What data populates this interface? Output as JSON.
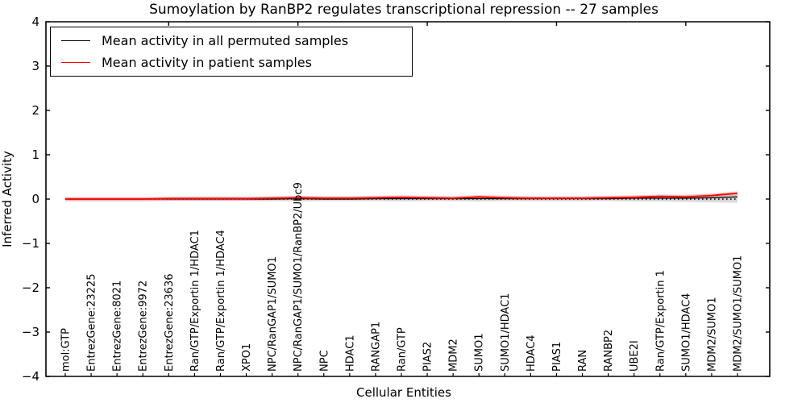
{
  "chart_data": {
    "type": "line",
    "title": "Sumoylation by RanBP2 regulates transcriptional repression -- 27 samples",
    "xlabel": "Cellular Entities",
    "ylabel": "Inferred Activity",
    "ylim": [
      -4,
      4
    ],
    "ytick_values": [
      4,
      3,
      2,
      1,
      0,
      -1,
      -2,
      -3,
      -4
    ],
    "ytick_labels": [
      "4",
      "3",
      "2",
      "1",
      "0",
      "−1",
      "−2",
      "−3",
      "−4"
    ],
    "top_xticks_at_positions": [
      5,
      10,
      15,
      20,
      25
    ],
    "grid": false,
    "legend_position": "upper left",
    "zero_reference_line": true,
    "categories": [
      "mol:GTP",
      "EntrezGene:23225",
      "EntrezGene:8021",
      "EntrezGene:9972",
      "EntrezGene:23636",
      "Ran/GTP/Exportin 1/HDAC1",
      "Ran/GTP/Exportin 1/HDAC4",
      "XPO1",
      "NPC/RanGAP1/SUMO1",
      "NPC/RanGAP1/SUMO1/RanBP2/Ubc9",
      "NPC",
      "HDAC1",
      "RANGAP1",
      "Ran/GTP",
      "PIAS2",
      "MDM2",
      "SUMO1",
      "SUMO1/HDAC1",
      "HDAC4",
      "PIAS1",
      "RAN",
      "RANBP2",
      "UBE2I",
      "Ran/GTP/Exportin 1",
      "SUMO1/HDAC4",
      "MDM2/SUMO1",
      "MDM2/SUMO1/SUMO1"
    ],
    "series": [
      {
        "name": "Mean activity in all permuted samples",
        "color": "#000000",
        "values": [
          0.0,
          0.0,
          0.0,
          0.0,
          0.0,
          0.0,
          0.0,
          0.0,
          0.0,
          0.01,
          0.0,
          0.0,
          0.01,
          0.01,
          0.01,
          0.01,
          0.01,
          0.01,
          0.01,
          0.01,
          0.01,
          0.01,
          0.02,
          0.02,
          0.02,
          0.03,
          0.05
        ]
      },
      {
        "name": "Mean activity in patient samples",
        "color": "#ff0000",
        "values": [
          0.0,
          0.0,
          0.0,
          0.0,
          0.01,
          0.01,
          0.01,
          0.01,
          0.02,
          0.03,
          0.02,
          0.02,
          0.03,
          0.04,
          0.03,
          0.02,
          0.05,
          0.03,
          0.02,
          0.02,
          0.02,
          0.03,
          0.04,
          0.06,
          0.05,
          0.08,
          0.13
        ]
      }
    ],
    "permutation_band": {
      "color": "#e4e4e4",
      "inner_color": "#d2d2d2",
      "upper": [
        0.05,
        0.05,
        0.05,
        0.05,
        0.05,
        0.06,
        0.06,
        0.05,
        0.06,
        0.07,
        0.06,
        0.06,
        0.07,
        0.07,
        0.07,
        0.06,
        0.08,
        0.07,
        0.06,
        0.06,
        0.06,
        0.07,
        0.08,
        0.09,
        0.1,
        0.12,
        0.16
      ],
      "lower": [
        -0.05,
        -0.05,
        -0.05,
        -0.05,
        -0.05,
        -0.05,
        -0.05,
        -0.05,
        -0.05,
        -0.06,
        -0.05,
        -0.05,
        -0.05,
        -0.06,
        -0.05,
        -0.05,
        -0.06,
        -0.05,
        -0.05,
        -0.05,
        -0.05,
        -0.05,
        -0.06,
        -0.06,
        -0.07,
        -0.08,
        -0.09
      ]
    }
  }
}
